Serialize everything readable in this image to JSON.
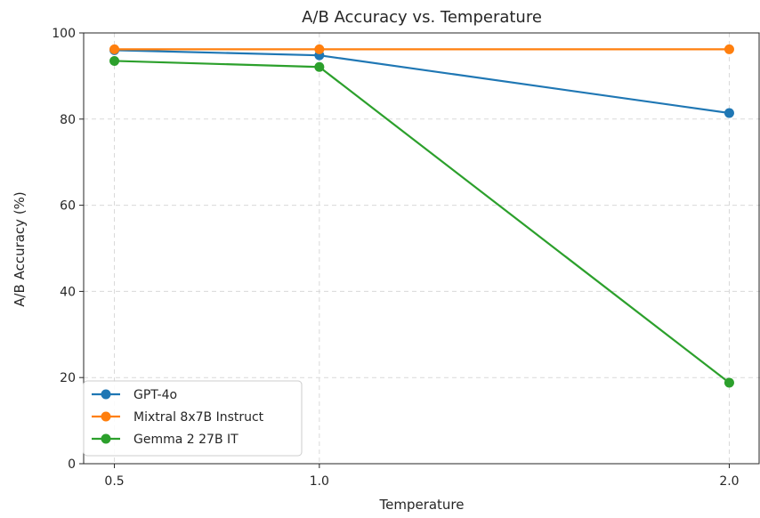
{
  "chart_data": {
    "type": "line",
    "title": "A/B Accuracy vs. Temperature",
    "xlabel": "Temperature",
    "ylabel": "A/B Accuracy (%)",
    "x": [
      0.5,
      1.0,
      2.0
    ],
    "x_tick_labels": [
      "0.5",
      "1.0",
      "2.0"
    ],
    "xlim": [
      0.425,
      2.075
    ],
    "ylim": [
      0,
      100
    ],
    "y_ticks": [
      0,
      20,
      40,
      60,
      80,
      100
    ],
    "y_tick_labels": [
      "0",
      "20",
      "40",
      "60",
      "80",
      "100"
    ],
    "grid": true,
    "legend_position": "lower-left",
    "series": [
      {
        "name": "GPT-4o",
        "values": [
          96.0,
          94.8,
          81.4
        ],
        "color": "#1f77b4",
        "marker": "circle"
      },
      {
        "name": "Mixtral 8x7B Instruct",
        "values": [
          96.2,
          96.2,
          96.2
        ],
        "color": "#ff7f0e",
        "marker": "circle"
      },
      {
        "name": "Gemma 2 27B IT",
        "values": [
          93.5,
          92.1,
          18.8
        ],
        "color": "#2ca02c",
        "marker": "circle"
      }
    ]
  }
}
